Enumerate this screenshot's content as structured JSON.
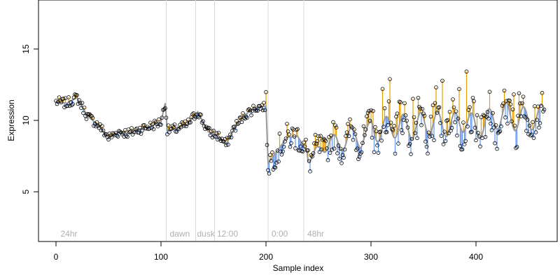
{
  "chart_data": {
    "type": "scatter",
    "title": "",
    "xlabel": "Sample index",
    "ylabel": "Expression",
    "xlim": [
      -17,
      480
    ],
    "ylim": [
      1.5,
      19.2
    ],
    "x_ticks": [
      0,
      100,
      200,
      300,
      400
    ],
    "y_ticks": [
      5,
      10,
      15
    ],
    "grid": false,
    "legend": "none",
    "annotations": [
      {
        "label": "24hr",
        "x": 3
      },
      {
        "label": "dawn",
        "x": 107
      },
      {
        "label": "dusk",
        "x": 133
      },
      {
        "label": "12:00",
        "x": 152
      },
      {
        "label": "0:00",
        "x": 204
      },
      {
        "label": "48hr",
        "x": 238
      }
    ],
    "divider_x": [
      105,
      133,
      151,
      202,
      236
    ],
    "colors": {
      "fitted_line": "#999999",
      "residual_positive": "#E69F00",
      "residual_negative": "#6495ED",
      "point_stroke": "#000000",
      "divider": "#d9d9d9",
      "annotation": "#b0b0b0"
    },
    "series": [
      {
        "name": "observed",
        "x": [],
        "y": []
      },
      {
        "name": "fitted",
        "x": [],
        "y": []
      }
    ],
    "observed_segments": [
      [
        0,
        11.3
      ],
      [
        10,
        11.2
      ],
      [
        20,
        11.6
      ],
      [
        30,
        10.3
      ],
      [
        40,
        9.7
      ],
      [
        50,
        8.8
      ],
      [
        60,
        9.2
      ],
      [
        70,
        9.1
      ],
      [
        80,
        9.4
      ],
      [
        90,
        9.6
      ],
      [
        100,
        9.9
      ],
      [
        104,
        11.2
      ],
      [
        106,
        9.3
      ],
      [
        115,
        9.4
      ],
      [
        125,
        9.7
      ],
      [
        135,
        10.6
      ],
      [
        145,
        9.2
      ],
      [
        155,
        8.9
      ],
      [
        162,
        8.3
      ],
      [
        170,
        9.5
      ],
      [
        180,
        10.4
      ],
      [
        190,
        10.9
      ],
      [
        200,
        11.0
      ],
      [
        202,
        7.0
      ],
      [
        210,
        7.8
      ],
      [
        220,
        8.8
      ],
      [
        230,
        8.9
      ],
      [
        240,
        7.7
      ],
      [
        250,
        7.6
      ],
      [
        260,
        8.7
      ],
      [
        270,
        8.2
      ],
      [
        280,
        9.0
      ],
      [
        290,
        8.6
      ],
      [
        300,
        9.4
      ],
      [
        310,
        9.3
      ],
      [
        320,
        9.6
      ],
      [
        330,
        9.6
      ],
      [
        340,
        9.5
      ],
      [
        350,
        9.8
      ],
      [
        360,
        9.8
      ],
      [
        370,
        9.7
      ],
      [
        380,
        9.7
      ],
      [
        390,
        10.1
      ],
      [
        400,
        9.4
      ],
      [
        410,
        9.9
      ],
      [
        420,
        10.2
      ],
      [
        430,
        10.4
      ],
      [
        440,
        10.0
      ],
      [
        450,
        10.2
      ],
      [
        460,
        10.1
      ],
      [
        465,
        10.6
      ]
    ]
  }
}
